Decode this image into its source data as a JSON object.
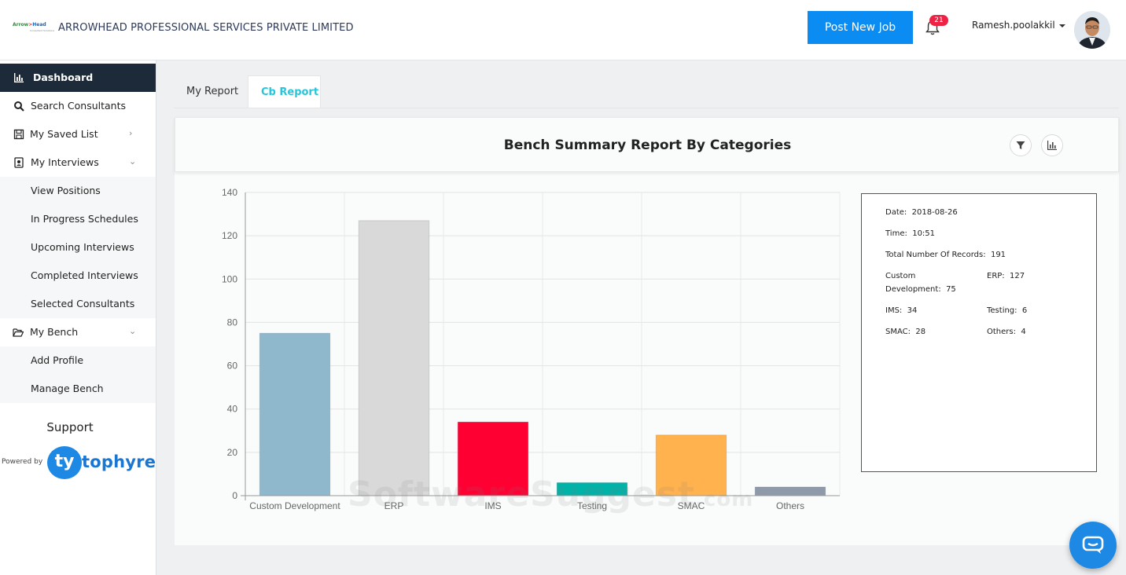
{
  "header": {
    "logo_part1": "Arrow",
    "logo_part2": ">",
    "logo_part3": "Head",
    "logo_tagline": "Consultant Solutions",
    "company": "ARROWHEAD PROFESSIONAL SERVICES PRIVATE LIMITED",
    "post_job": "Post New Job",
    "notifications": "21",
    "user": "Ramesh.poolakkil"
  },
  "sidebar": {
    "items": [
      {
        "label": "Dashboard"
      },
      {
        "label": "Search Consultants"
      },
      {
        "label": "My Saved List"
      },
      {
        "label": "My Interviews"
      },
      {
        "label": "View Positions"
      },
      {
        "label": "In Progress Schedules"
      },
      {
        "label": "Upcoming Interviews"
      },
      {
        "label": "Completed Interviews"
      },
      {
        "label": "Selected Consultants"
      },
      {
        "label": "My Bench"
      },
      {
        "label": "Add Profile"
      },
      {
        "label": "Manage Bench"
      }
    ],
    "support": "Support",
    "powered_by": "Powered by",
    "brand_mark": "ty",
    "brand_name": "tophyre"
  },
  "tabs": {
    "my_report": "My Report",
    "cb_report": "Cb Report"
  },
  "panel": {
    "title": "Bench Summary Report By Categories"
  },
  "info": {
    "date_label": "Date:",
    "date": "2018-08-26",
    "time_label": "Time:",
    "time": "10:51",
    "total_label": "Total Number Of Records:",
    "total": "191",
    "custom_label": "Custom Development:",
    "custom": "75",
    "erp_label": "ERP:",
    "erp": "127",
    "ims_label": "IMS:",
    "ims": "34",
    "testing_label": "Testing:",
    "testing": "6",
    "smac_label": "SMAC:",
    "smac": "28",
    "others_label": "Others:",
    "others": "4"
  },
  "watermark": {
    "main": "SoftwareSuggest",
    "suffix": ".com"
  },
  "chart_data": {
    "type": "bar",
    "title": "Bench Summary Report By Categories",
    "categories": [
      "Custom Development",
      "ERP",
      "IMS",
      "Testing",
      "SMAC",
      "Others"
    ],
    "values": [
      75,
      127,
      34,
      6,
      28,
      4
    ],
    "colors": [
      "#8fb8cd",
      "#d9d9d9",
      "#ff0033",
      "#00b3a8",
      "#ffb24d",
      "#8e99aa"
    ],
    "ylim": [
      0,
      140
    ],
    "yticks": [
      0,
      20,
      40,
      60,
      80,
      100,
      120,
      140
    ],
    "xlabel": "",
    "ylabel": ""
  }
}
